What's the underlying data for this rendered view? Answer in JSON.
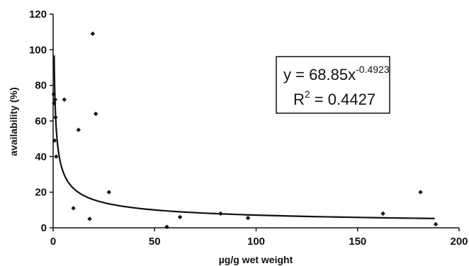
{
  "chart_data": {
    "type": "scatter",
    "title": "",
    "xlabel": "µg/g wet weight",
    "ylabel": "availability (%)",
    "xlim": [
      0,
      200
    ],
    "ylim": [
      0,
      120
    ],
    "x_ticks": [
      "0",
      "50",
      "100",
      "150",
      "200"
    ],
    "y_ticks": [
      "0",
      "20",
      "40",
      "60",
      "80",
      "100",
      "120"
    ],
    "grid": false,
    "series": [
      {
        "marker": "diamond",
        "points": [
          {
            "x": 0.3,
            "y": 75
          },
          {
            "x": 0.5,
            "y": 70
          },
          {
            "x": 0.7,
            "y": 49
          },
          {
            "x": 1.0,
            "y": 72
          },
          {
            "x": 1.2,
            "y": 62
          },
          {
            "x": 1.5,
            "y": 40
          },
          {
            "x": 5.5,
            "y": 72
          },
          {
            "x": 10,
            "y": 11
          },
          {
            "x": 12.5,
            "y": 55
          },
          {
            "x": 18,
            "y": 5
          },
          {
            "x": 19.5,
            "y": 109
          },
          {
            "x": 21,
            "y": 64
          },
          {
            "x": 27.5,
            "y": 20
          },
          {
            "x": 56,
            "y": 0.5
          },
          {
            "x": 62.5,
            "y": 6
          },
          {
            "x": 82.5,
            "y": 8
          },
          {
            "x": 96,
            "y": 5.5
          },
          {
            "x": 162.5,
            "y": 8
          },
          {
            "x": 181,
            "y": 20
          },
          {
            "x": 188.5,
            "y": 2
          }
        ]
      }
    ],
    "trendline": {
      "type": "power",
      "coefficient": 68.85,
      "exponent": -0.4923,
      "x_range": [
        0.5,
        188
      ]
    },
    "annotation": {
      "equation_base": "y = 68.85x",
      "equation_exponent": "-0.4923",
      "r2_base": "R",
      "r2_sup": "2",
      "r2_value": " = 0.4427"
    }
  }
}
